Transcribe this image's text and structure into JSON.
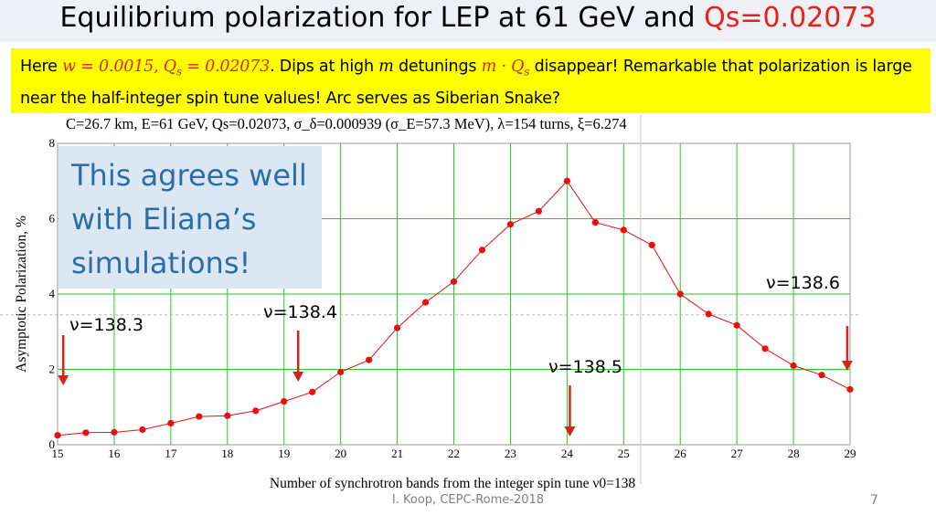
{
  "slide": {
    "title_main": "Equilibrium polarization for LEP at 61 GeV and ",
    "title_accent": "Qs=0.02073",
    "accent_color": "#e8201a",
    "footer": "I. Koop, CEPC-Rome-2018",
    "page_number": "7"
  },
  "note": {
    "here": "Here ",
    "w_expr": "w = 0.0015, Q",
    "w_sub": "s",
    "q_expr": " = 0.02073",
    "text1": ". Dips at high ",
    "m": "m",
    "text2": " detunings ",
    "mq_expr": "m · Q",
    "mq_sub": "s",
    "text3": " disappear!  Remarkable that polarization is large near the half-integer spin tune values!  Arc serves as Siberian Snake?"
  },
  "chart_header": "C=26.7 km,  E=61 GeV,  Qs=0.02073,  σ_δ=0.000939 (σ_E=57.3 MeV),  λ=154 turns,  ξ=6.274",
  "callout": {
    "line1": "This agrees well",
    "line2": "with Eliana’s",
    "line3": "simulations!"
  },
  "markers": [
    {
      "label": "ν=138.3",
      "x": 15.1
    },
    {
      "label": "ν=138.4",
      "x": 19.25
    },
    {
      "label": "ν=138.5",
      "x": 24.05
    },
    {
      "label": "ν=138.6",
      "x": 28.95
    }
  ],
  "chart_data": {
    "type": "line",
    "xlabel": "Number of synchrotron bands from the integer spin tune ν0=138",
    "ylabel": "Asymptotic Polarization, %",
    "xlim": [
      15,
      29
    ],
    "ylim": [
      0,
      8
    ],
    "x_ticks": [
      "15",
      "16",
      "17",
      "18",
      "19",
      "20",
      "21",
      "22",
      "23",
      "24",
      "25",
      "26",
      "27",
      "28",
      "29"
    ],
    "y_ticks": [
      "0",
      "2",
      "4",
      "6",
      "8"
    ],
    "grid": true,
    "series_color": "#e81010",
    "grid_color": "#22cc22",
    "dashed_reference_y": 3.45,
    "vertical_reference_x": 25.3,
    "x": [
      15,
      15.5,
      16,
      16.5,
      17,
      17.5,
      18,
      18.5,
      19,
      19.5,
      20,
      20.5,
      21,
      21.5,
      22,
      22.5,
      23,
      23.5,
      24,
      24.5,
      25,
      25.5,
      26,
      26.5,
      27,
      27.5,
      28,
      28.5,
      29
    ],
    "y": [
      0.25,
      0.32,
      0.33,
      0.4,
      0.57,
      0.75,
      0.77,
      0.9,
      1.15,
      1.4,
      1.93,
      2.25,
      3.1,
      3.78,
      4.33,
      5.17,
      5.85,
      6.2,
      7.0,
      5.9,
      5.7,
      5.3,
      4.0,
      3.47,
      3.17,
      2.55,
      2.1,
      1.85,
      1.47
    ]
  }
}
